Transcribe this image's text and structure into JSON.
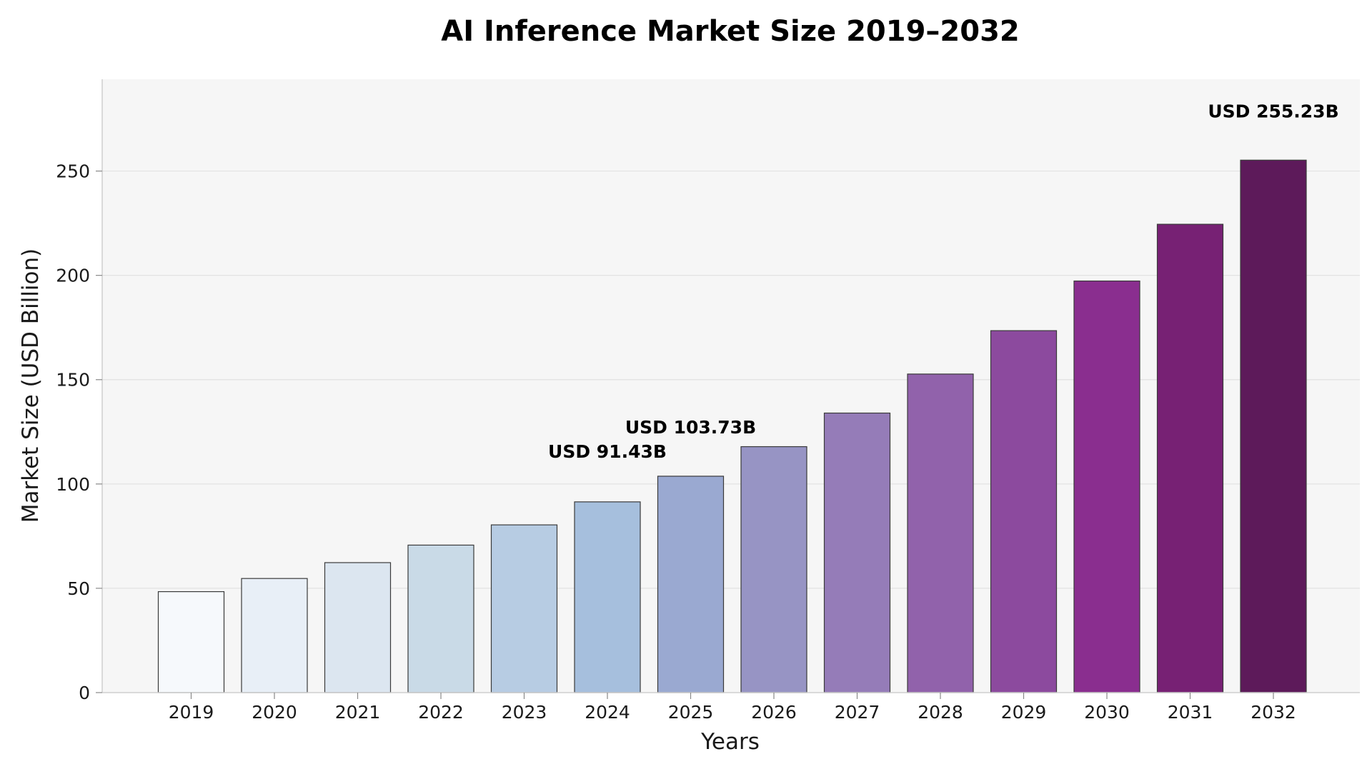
{
  "chart_data": {
    "type": "bar",
    "title": "AI Inference Market Size 2019–2032",
    "xlabel": "Years",
    "ylabel": "Market Size (USD Billion)",
    "ylim": [
      0,
      294
    ],
    "yticks": [
      0,
      50,
      100,
      150,
      200,
      250
    ],
    "grid": true,
    "categories": [
      "2019",
      "2020",
      "2021",
      "2022",
      "2023",
      "2024",
      "2025",
      "2026",
      "2027",
      "2028",
      "2029",
      "2030",
      "2031",
      "2032"
    ],
    "values": [
      48.4,
      54.7,
      62.3,
      70.7,
      80.4,
      91.43,
      103.73,
      117.9,
      134.0,
      152.7,
      173.5,
      197.3,
      224.5,
      255.23
    ],
    "colors": [
      "#f6f9fc",
      "#e8eff7",
      "#dce6f0",
      "#c9dae7",
      "#b7cce3",
      "#a6bfdd",
      "#9aa9d1",
      "#9794c4",
      "#957cb8",
      "#9162ab",
      "#8c4a9e",
      "#8a2e8f",
      "#772174",
      "#5d1a5a"
    ],
    "annotations": [
      {
        "category": "2024",
        "text": "USD 91.43B"
      },
      {
        "category": "2025",
        "text": "USD 103.73B"
      },
      {
        "category": "2032",
        "text": "USD 255.23B"
      }
    ]
  }
}
